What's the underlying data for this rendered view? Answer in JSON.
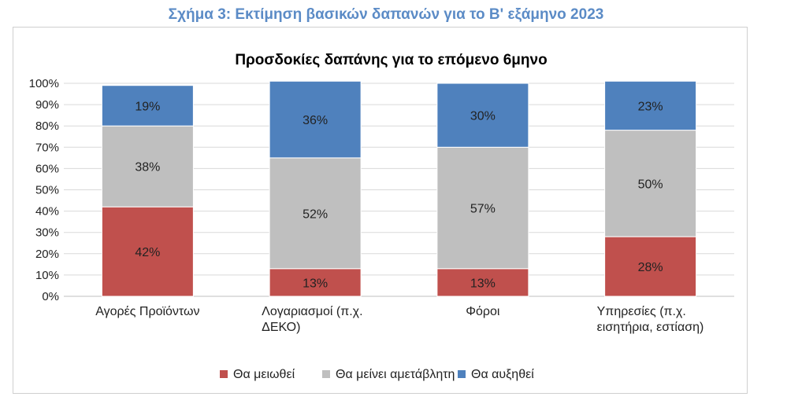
{
  "figure_title": "Σχήμα 3: Εκτίμηση βασικών δαπανών για το Β' εξάμηνο 2023",
  "chart_data": {
    "type": "bar",
    "stacked": true,
    "title": "Προσδοκίες δαπάνης για το επόμενο 6μηνο",
    "categories": [
      [
        "Αγορές Προϊόντων"
      ],
      [
        "Λογαριασμοί (π.χ.",
        "ΔΕΚΟ)"
      ],
      [
        "Φόροι"
      ],
      [
        "Υπηρεσίες (π.χ.",
        "εισητήρια, εστίαση)"
      ]
    ],
    "series": [
      {
        "name": "Θα μειωθεί",
        "color": "#c0504d",
        "values": [
          42,
          13,
          13,
          28
        ]
      },
      {
        "name": "Θα μείνει αμετάβλητη",
        "color": "#bfbfbf",
        "values": [
          38,
          52,
          57,
          50
        ]
      },
      {
        "name": "Θα αυξηθεί",
        "color": "#4f81bd",
        "values": [
          19,
          36,
          30,
          23
        ]
      }
    ],
    "ylim": [
      0,
      100
    ],
    "yticks": [
      "0%",
      "10%",
      "20%",
      "30%",
      "40%",
      "50%",
      "60%",
      "70%",
      "80%",
      "90%",
      "100%"
    ],
    "grid": true,
    "legend": "bottom"
  }
}
